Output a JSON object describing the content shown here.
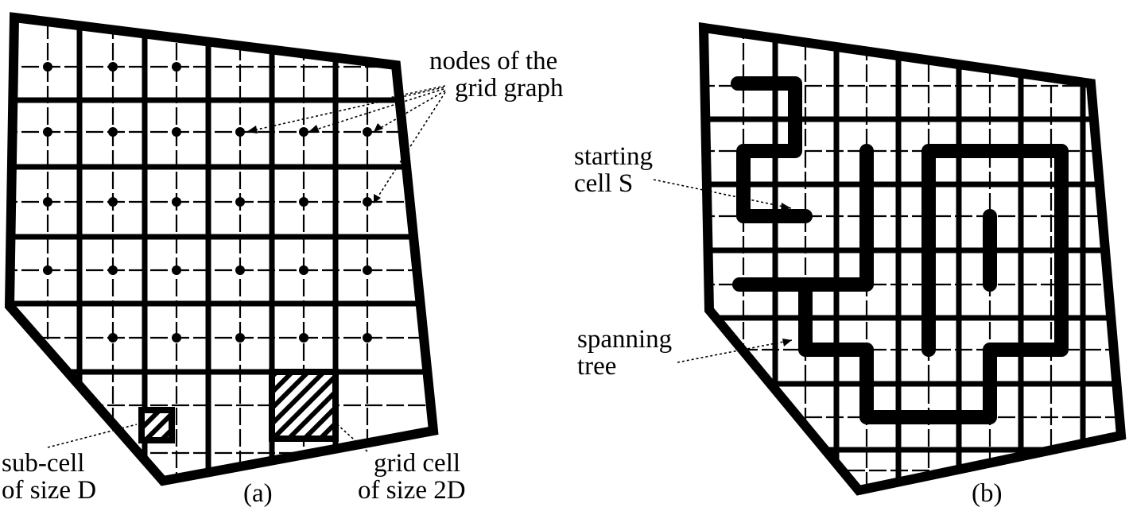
{
  "figure": {
    "panel_a": {
      "caption": "(a)",
      "nodes_label": [
        "nodes of the",
        "grid graph"
      ],
      "subcell_label": [
        "sub-cell",
        "of size D"
      ],
      "gridcell_label": [
        "grid cell",
        "of size 2D"
      ]
    },
    "panel_b": {
      "caption": "(b)",
      "start_label": [
        "starting",
        "cell S"
      ],
      "tree_label": [
        "spanning",
        "tree"
      ]
    }
  }
}
